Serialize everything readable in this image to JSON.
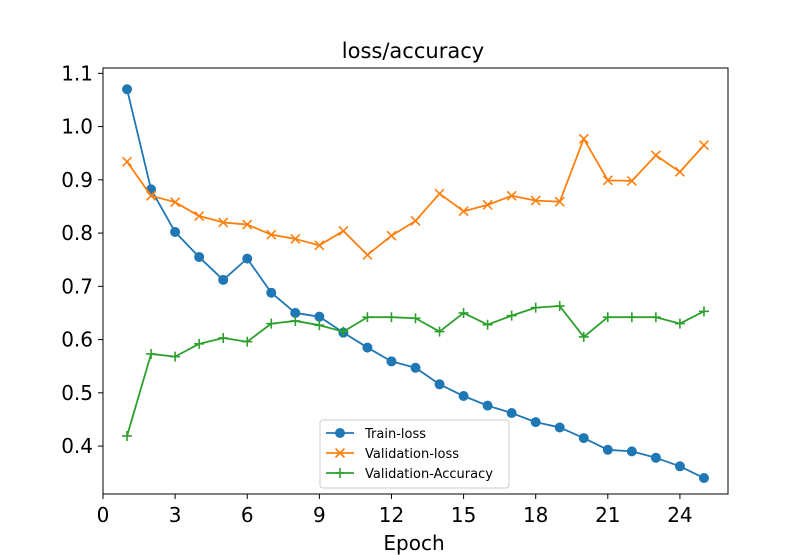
{
  "chart_data": {
    "type": "line",
    "title": "loss/accuracy",
    "xlabel": "Epoch",
    "ylabel": "",
    "xlim": [
      0,
      26
    ],
    "ylim": [
      0.31,
      1.11
    ],
    "xticks": [
      0,
      3,
      6,
      9,
      12,
      15,
      18,
      21,
      24
    ],
    "yticks": [
      0.4,
      0.5,
      0.6,
      0.7,
      0.8,
      0.9,
      1.0,
      1.1
    ],
    "ytick_labels": [
      "0.4",
      "0.5",
      "0.6",
      "0.7",
      "0.8",
      "0.9",
      "1.0",
      "1.1"
    ],
    "legend_position": "lower-center",
    "x": [
      1,
      2,
      3,
      4,
      5,
      6,
      7,
      8,
      9,
      10,
      11,
      12,
      13,
      14,
      15,
      16,
      17,
      18,
      19,
      20,
      21,
      22,
      23,
      24,
      25
    ],
    "series": [
      {
        "name": "Train-loss",
        "color": "#1f77b4",
        "marker": "circle",
        "values": [
          1.07,
          0.882,
          0.802,
          0.755,
          0.712,
          0.752,
          0.688,
          0.65,
          0.643,
          0.613,
          0.585,
          0.559,
          0.547,
          0.516,
          0.494,
          0.476,
          0.462,
          0.445,
          0.435,
          0.415,
          0.393,
          0.39,
          0.378,
          0.362,
          0.34
        ]
      },
      {
        "name": "Validation-loss",
        "color": "#ff7f0e",
        "marker": "x",
        "values": [
          0.934,
          0.87,
          0.858,
          0.832,
          0.82,
          0.816,
          0.797,
          0.789,
          0.777,
          0.804,
          0.759,
          0.795,
          0.823,
          0.874,
          0.841,
          0.853,
          0.87,
          0.861,
          0.859,
          0.977,
          0.899,
          0.898,
          0.946,
          0.915,
          0.965
        ]
      },
      {
        "name": "Validation-Accuracy",
        "color": "#2ca02c",
        "marker": "plus",
        "values": [
          0.419,
          0.573,
          0.568,
          0.592,
          0.603,
          0.596,
          0.63,
          0.635,
          0.627,
          0.615,
          0.642,
          0.642,
          0.64,
          0.615,
          0.65,
          0.628,
          0.645,
          0.66,
          0.663,
          0.605,
          0.642,
          0.642,
          0.642,
          0.63,
          0.653
        ]
      }
    ]
  }
}
